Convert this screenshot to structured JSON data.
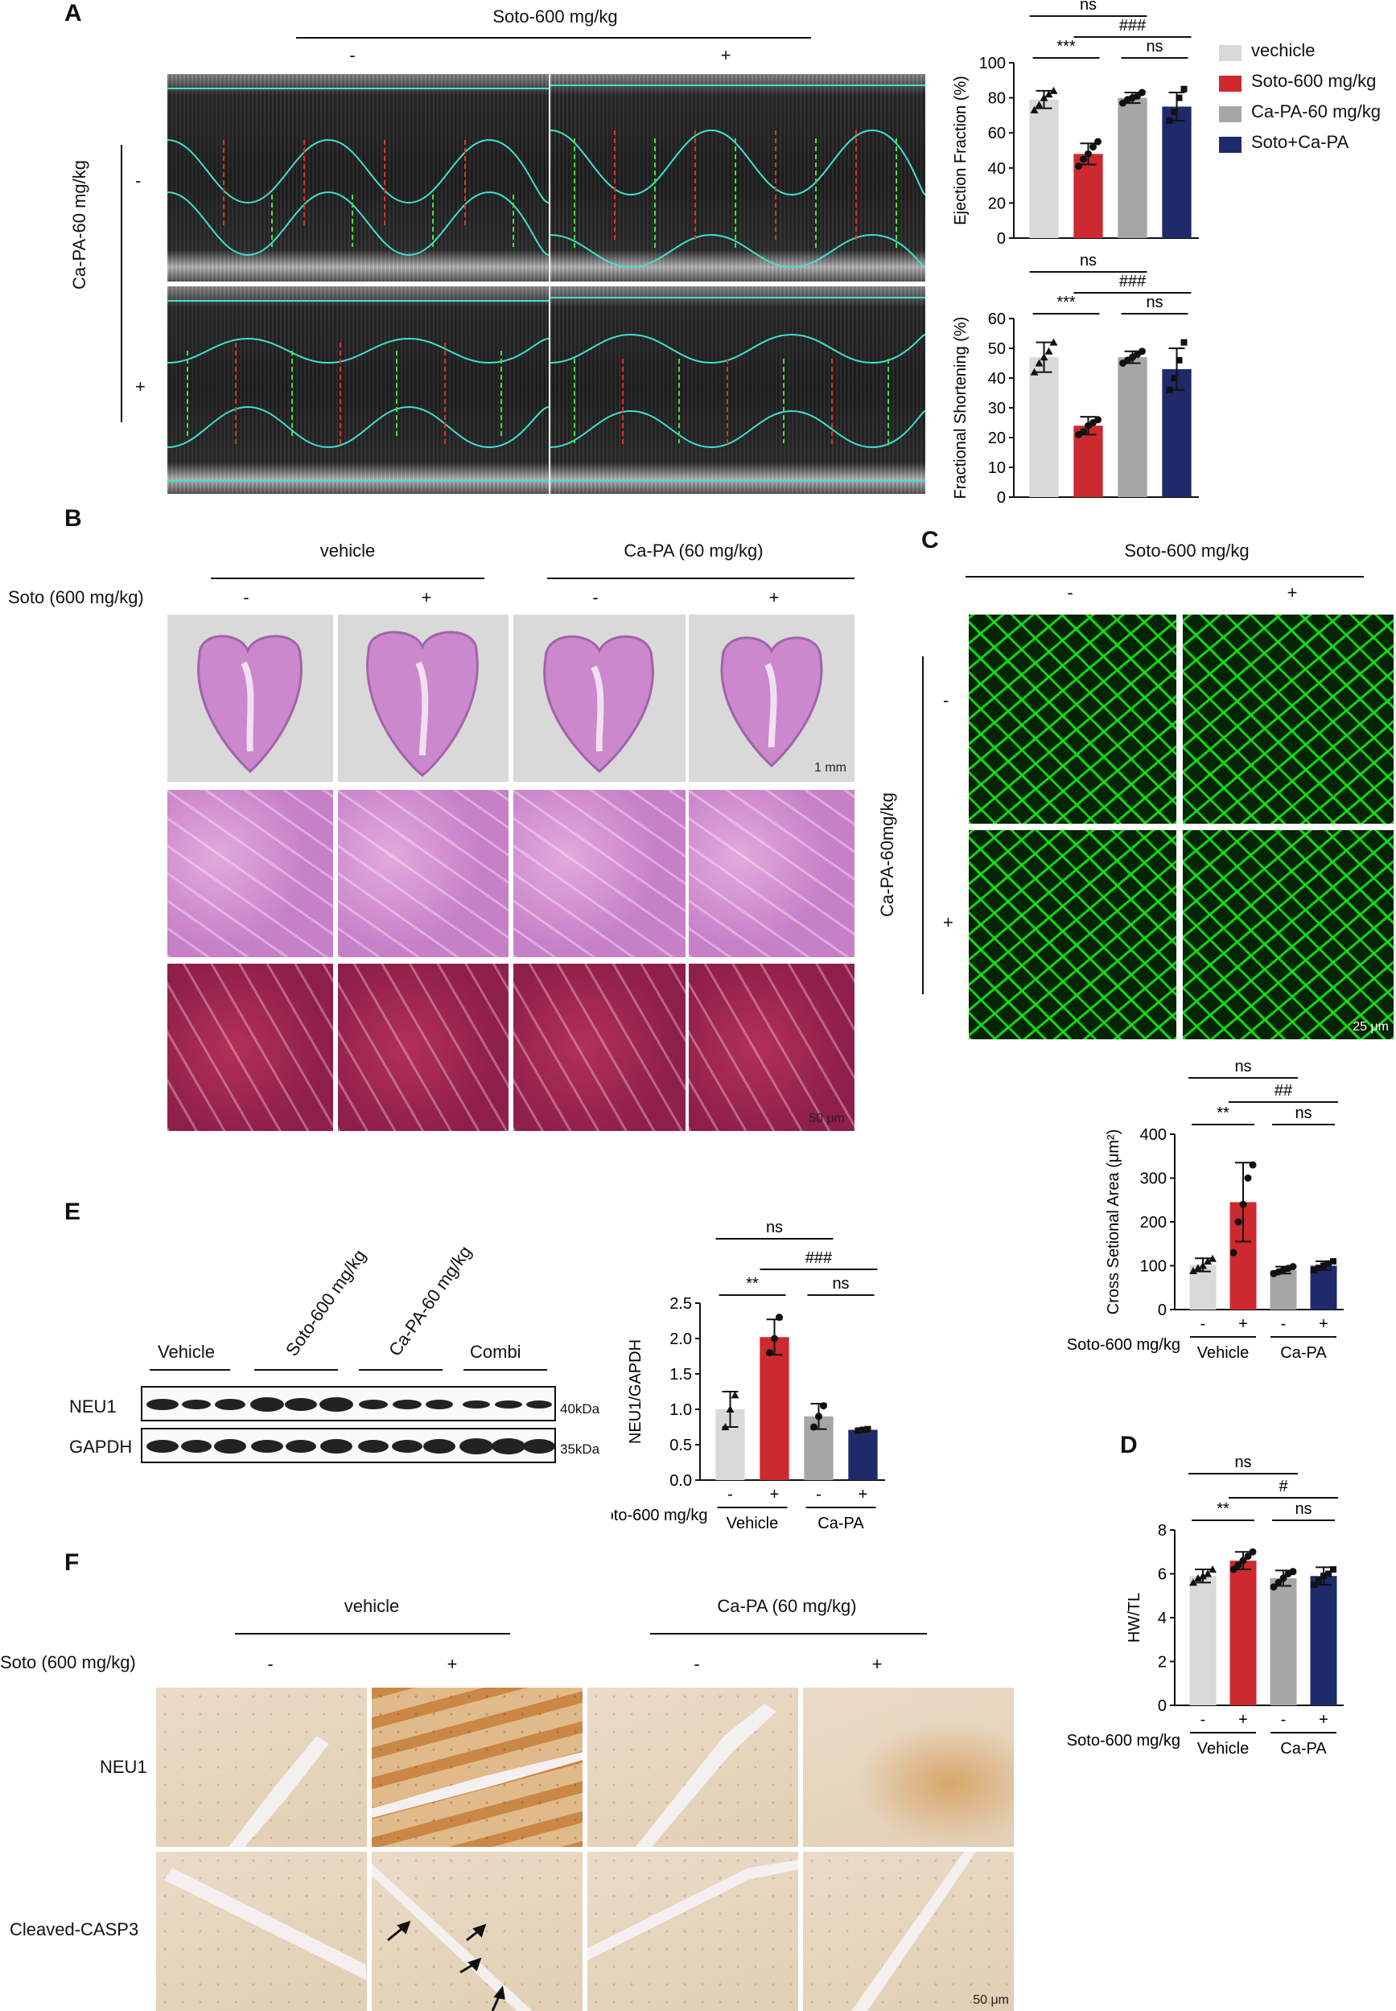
{
  "panels": {
    "A": "A",
    "B": "B",
    "C": "C",
    "D": "D",
    "E": "E",
    "F": "F"
  },
  "common": {
    "soto600": "Soto-600 mg/kg",
    "minus": "-",
    "plus": "+",
    "ns": "ns",
    "vehicle": "vehicle",
    "vehicle_cap": "Vehicle",
    "capa": "Ca-PA",
    "capa60": "Ca-PA (60 mg/kg)",
    "soto600_paren": "Soto (600 mg/kg)"
  },
  "panelA": {
    "col_header": "Soto-600 mg/kg",
    "row_header": "Ca-PA-60 mg/kg"
  },
  "panelC": {
    "col_header": "Soto-600 mg/kg",
    "row_header": "Ca-PA-60mg/kg",
    "scale": "25 μm"
  },
  "panelB": {
    "scale_top": "1 mm",
    "scale_bottom": "50 μm"
  },
  "panelE": {
    "lanes": [
      "Vehicle",
      "Soto-600 mg/kg",
      "Ca-PA-60 mg/kg",
      "Combi"
    ],
    "rows": [
      "NEU1",
      "GAPDH"
    ],
    "markers": [
      "40kDa",
      "35kDa"
    ]
  },
  "panelF": {
    "rows": [
      "NEU1",
      "Cleaved-CASP3"
    ],
    "scale": "50 μm"
  },
  "legend": {
    "entries": [
      {
        "label": "vechicle",
        "color": "#d9d9d9"
      },
      {
        "label": "Soto-600 mg/kg",
        "color": "#cc2a2f"
      },
      {
        "label": "Ca-PA-60 mg/kg",
        "color": "#a6a6a6"
      },
      {
        "label": "Soto+Ca-PA",
        "color": "#1f2a6b"
      }
    ]
  },
  "chart_data": [
    {
      "id": "ef",
      "type": "bar",
      "ylabel": "Ejection Fraction (%)",
      "ylim": [
        0,
        100
      ],
      "yticks": [
        0,
        20,
        40,
        60,
        80,
        100
      ],
      "categories": [
        "vechicle",
        "Soto-600 mg/kg",
        "Ca-PA-60 mg/kg",
        "Soto+Ca-PA"
      ],
      "values": [
        79,
        48,
        80,
        75
      ],
      "errors": [
        5,
        6,
        3,
        8
      ],
      "points": [
        [
          73,
          76,
          80,
          82,
          84
        ],
        [
          41,
          45,
          48,
          52,
          55
        ],
        [
          77,
          79,
          80,
          81,
          83
        ],
        [
          67,
          72,
          80,
          85
        ]
      ],
      "brackets": [
        {
          "from": 0,
          "to": 1,
          "label": "***",
          "level": 0
        },
        {
          "from": 2,
          "to": 3,
          "label": "ns",
          "level": 0
        },
        {
          "from": 1,
          "to": 3,
          "label": "###",
          "level": 1
        },
        {
          "from": 0,
          "to": 2,
          "label": "ns",
          "level": 2
        }
      ]
    },
    {
      "id": "fs",
      "type": "bar",
      "ylabel": "Fractional Shortening (%)",
      "ylim": [
        0,
        60
      ],
      "yticks": [
        0,
        10,
        20,
        30,
        40,
        50,
        60
      ],
      "categories": [
        "vechicle",
        "Soto-600 mg/kg",
        "Ca-PA-60 mg/kg",
        "Soto+Ca-PA"
      ],
      "values": [
        47,
        24,
        47,
        43
      ],
      "errors": [
        5,
        3,
        2,
        7
      ],
      "points": [
        [
          42,
          45,
          47,
          49,
          52
        ],
        [
          21,
          22,
          24,
          25,
          26
        ],
        [
          45,
          46,
          47,
          48,
          49
        ],
        [
          36,
          40,
          46,
          52
        ]
      ],
      "brackets": [
        {
          "from": 0,
          "to": 1,
          "label": "***",
          "level": 0
        },
        {
          "from": 2,
          "to": 3,
          "label": "ns",
          "level": 0
        },
        {
          "from": 1,
          "to": 3,
          "label": "###",
          "level": 1
        },
        {
          "from": 0,
          "to": 2,
          "label": "ns",
          "level": 2
        }
      ]
    },
    {
      "id": "csa",
      "type": "bar",
      "ylabel": "Cross Setional Area (μm²)",
      "ylim": [
        0,
        400
      ],
      "yticks": [
        0,
        100,
        200,
        300,
        400
      ],
      "categories": [
        "-",
        "+",
        "-",
        "+"
      ],
      "values": [
        102,
        245,
        90,
        100
      ],
      "errors": [
        15,
        90,
        8,
        10
      ],
      "points": [
        [
          88,
          95,
          100,
          110,
          116
        ],
        [
          130,
          200,
          240,
          300,
          330
        ],
        [
          82,
          86,
          90,
          94,
          98
        ],
        [
          90,
          95,
          100,
          105,
          110
        ]
      ],
      "brackets": [
        {
          "from": 0,
          "to": 1,
          "label": "**",
          "level": 0
        },
        {
          "from": 2,
          "to": 3,
          "label": "ns",
          "level": 0
        },
        {
          "from": 1,
          "to": 3,
          "label": "##",
          "level": 1
        },
        {
          "from": 0,
          "to": 2,
          "label": "ns",
          "level": 2
        }
      ]
    },
    {
      "id": "hwtl",
      "type": "bar",
      "ylabel": "HW/TL",
      "ylim": [
        0,
        8
      ],
      "yticks": [
        0,
        2,
        4,
        6,
        8
      ],
      "categories": [
        "-",
        "+",
        "-",
        "+"
      ],
      "values": [
        5.9,
        6.6,
        5.8,
        5.9
      ],
      "errors": [
        0.3,
        0.4,
        0.35,
        0.4
      ],
      "points": [
        [
          5.6,
          5.8,
          5.9,
          6.0,
          6.2
        ],
        [
          6.2,
          6.4,
          6.6,
          6.8,
          7.0
        ],
        [
          5.4,
          5.6,
          5.8,
          6.0,
          6.1
        ],
        [
          5.5,
          5.7,
          5.9,
          6.0,
          6.2
        ]
      ],
      "brackets": [
        {
          "from": 0,
          "to": 1,
          "label": "**",
          "level": 0
        },
        {
          "from": 2,
          "to": 3,
          "label": "ns",
          "level": 0
        },
        {
          "from": 1,
          "to": 3,
          "label": "#",
          "level": 1
        },
        {
          "from": 0,
          "to": 2,
          "label": "ns",
          "level": 2
        }
      ]
    },
    {
      "id": "neu1",
      "type": "bar",
      "ylabel": "NEU1/GAPDH",
      "ylim": [
        0,
        2.5
      ],
      "yticks": [
        0.0,
        0.5,
        1.0,
        1.5,
        2.0,
        2.5
      ],
      "categories": [
        "-",
        "+",
        "-",
        "+"
      ],
      "values": [
        1.0,
        2.02,
        0.9,
        0.71
      ],
      "errors": [
        0.25,
        0.25,
        0.18,
        0.02
      ],
      "points": [
        [
          0.75,
          1.0,
          1.2
        ],
        [
          1.8,
          2.0,
          2.3
        ],
        [
          0.75,
          0.9,
          1.05
        ],
        [
          0.7,
          0.71,
          0.72
        ]
      ],
      "brackets": [
        {
          "from": 0,
          "to": 1,
          "label": "**",
          "level": 0
        },
        {
          "from": 2,
          "to": 3,
          "label": "ns",
          "level": 0
        },
        {
          "from": 1,
          "to": 3,
          "label": "###",
          "level": 1
        },
        {
          "from": 0,
          "to": 2,
          "label": "ns",
          "level": 2
        }
      ]
    }
  ],
  "chart_colors": [
    "#d9d9d9",
    "#cc2a2f",
    "#a6a6a6",
    "#1f2a6b"
  ]
}
